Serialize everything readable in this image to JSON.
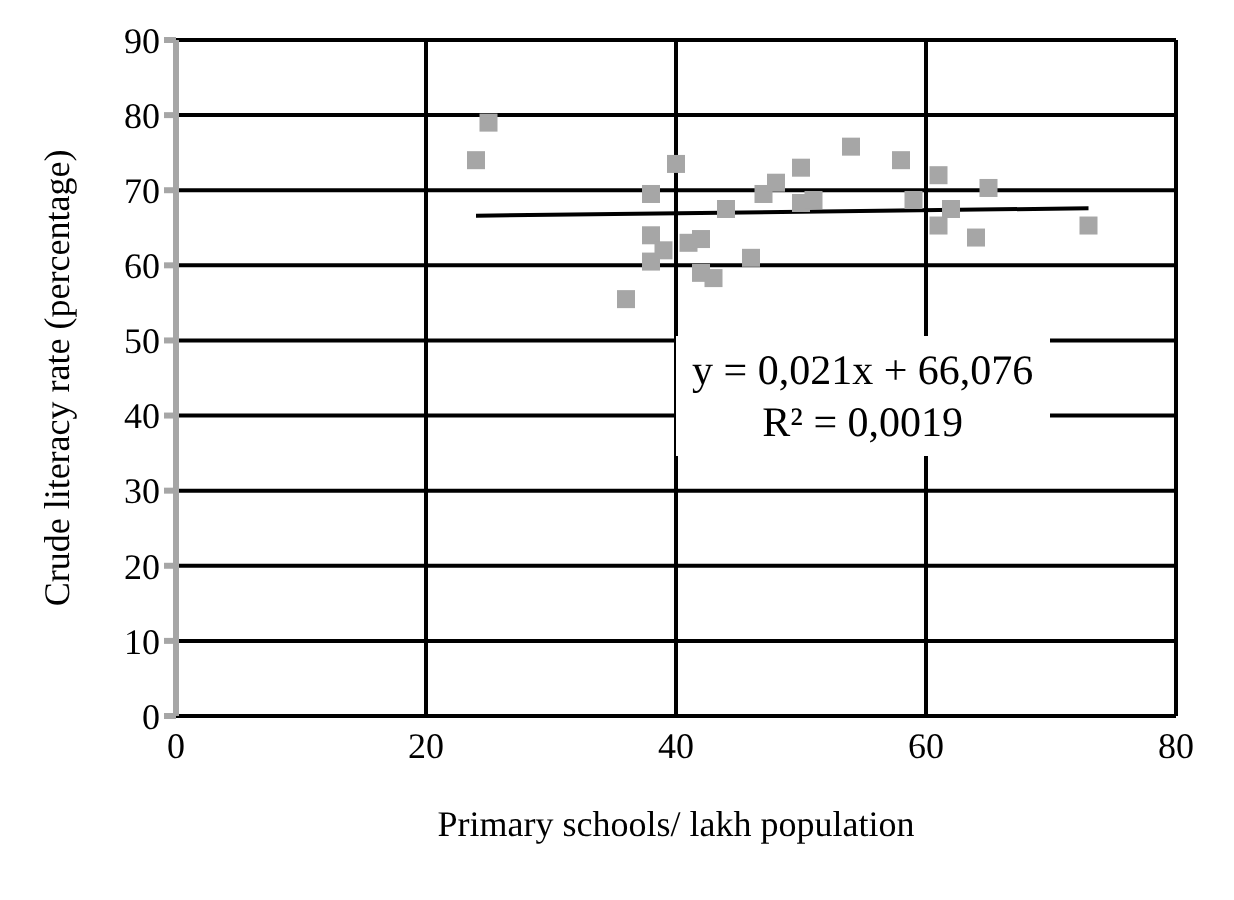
{
  "chart_data": {
    "type": "scatter",
    "xlabel": "Primary schools/ lakh population",
    "ylabel": "Crude literacy rate (percentage)",
    "xlim": [
      0,
      80
    ],
    "xticks": [
      0,
      20,
      40,
      60,
      80
    ],
    "ylim": [
      0,
      90
    ],
    "yticks": [
      0,
      10,
      20,
      30,
      40,
      50,
      60,
      70,
      80,
      90
    ],
    "grid": true,
    "marker": "square",
    "annotations": [
      "y = 0,021x + 66,076",
      "R² = 0,0019"
    ],
    "series": [
      {
        "color": "#a6a6a6",
        "x": [
          24,
          25,
          36,
          38,
          38,
          38,
          39,
          40,
          41,
          42,
          42,
          43,
          44,
          46,
          47,
          48,
          50,
          50,
          51,
          54,
          58,
          59,
          61,
          61,
          62,
          64,
          65,
          73
        ],
        "values": [
          74,
          79,
          55.5,
          69.5,
          64,
          60.5,
          62,
          73.5,
          63,
          63.5,
          59,
          58.3,
          67.5,
          61,
          69.5,
          71,
          73,
          68.3,
          68.7,
          75.8,
          74,
          68.7,
          72,
          65.3,
          67.5,
          63.7,
          70.3,
          65.3
        ]
      },
      {
        "type": "line",
        "color": "#000000",
        "marker": "none",
        "x": [
          24,
          73
        ],
        "values": [
          66.6,
          67.6
        ]
      }
    ]
  }
}
